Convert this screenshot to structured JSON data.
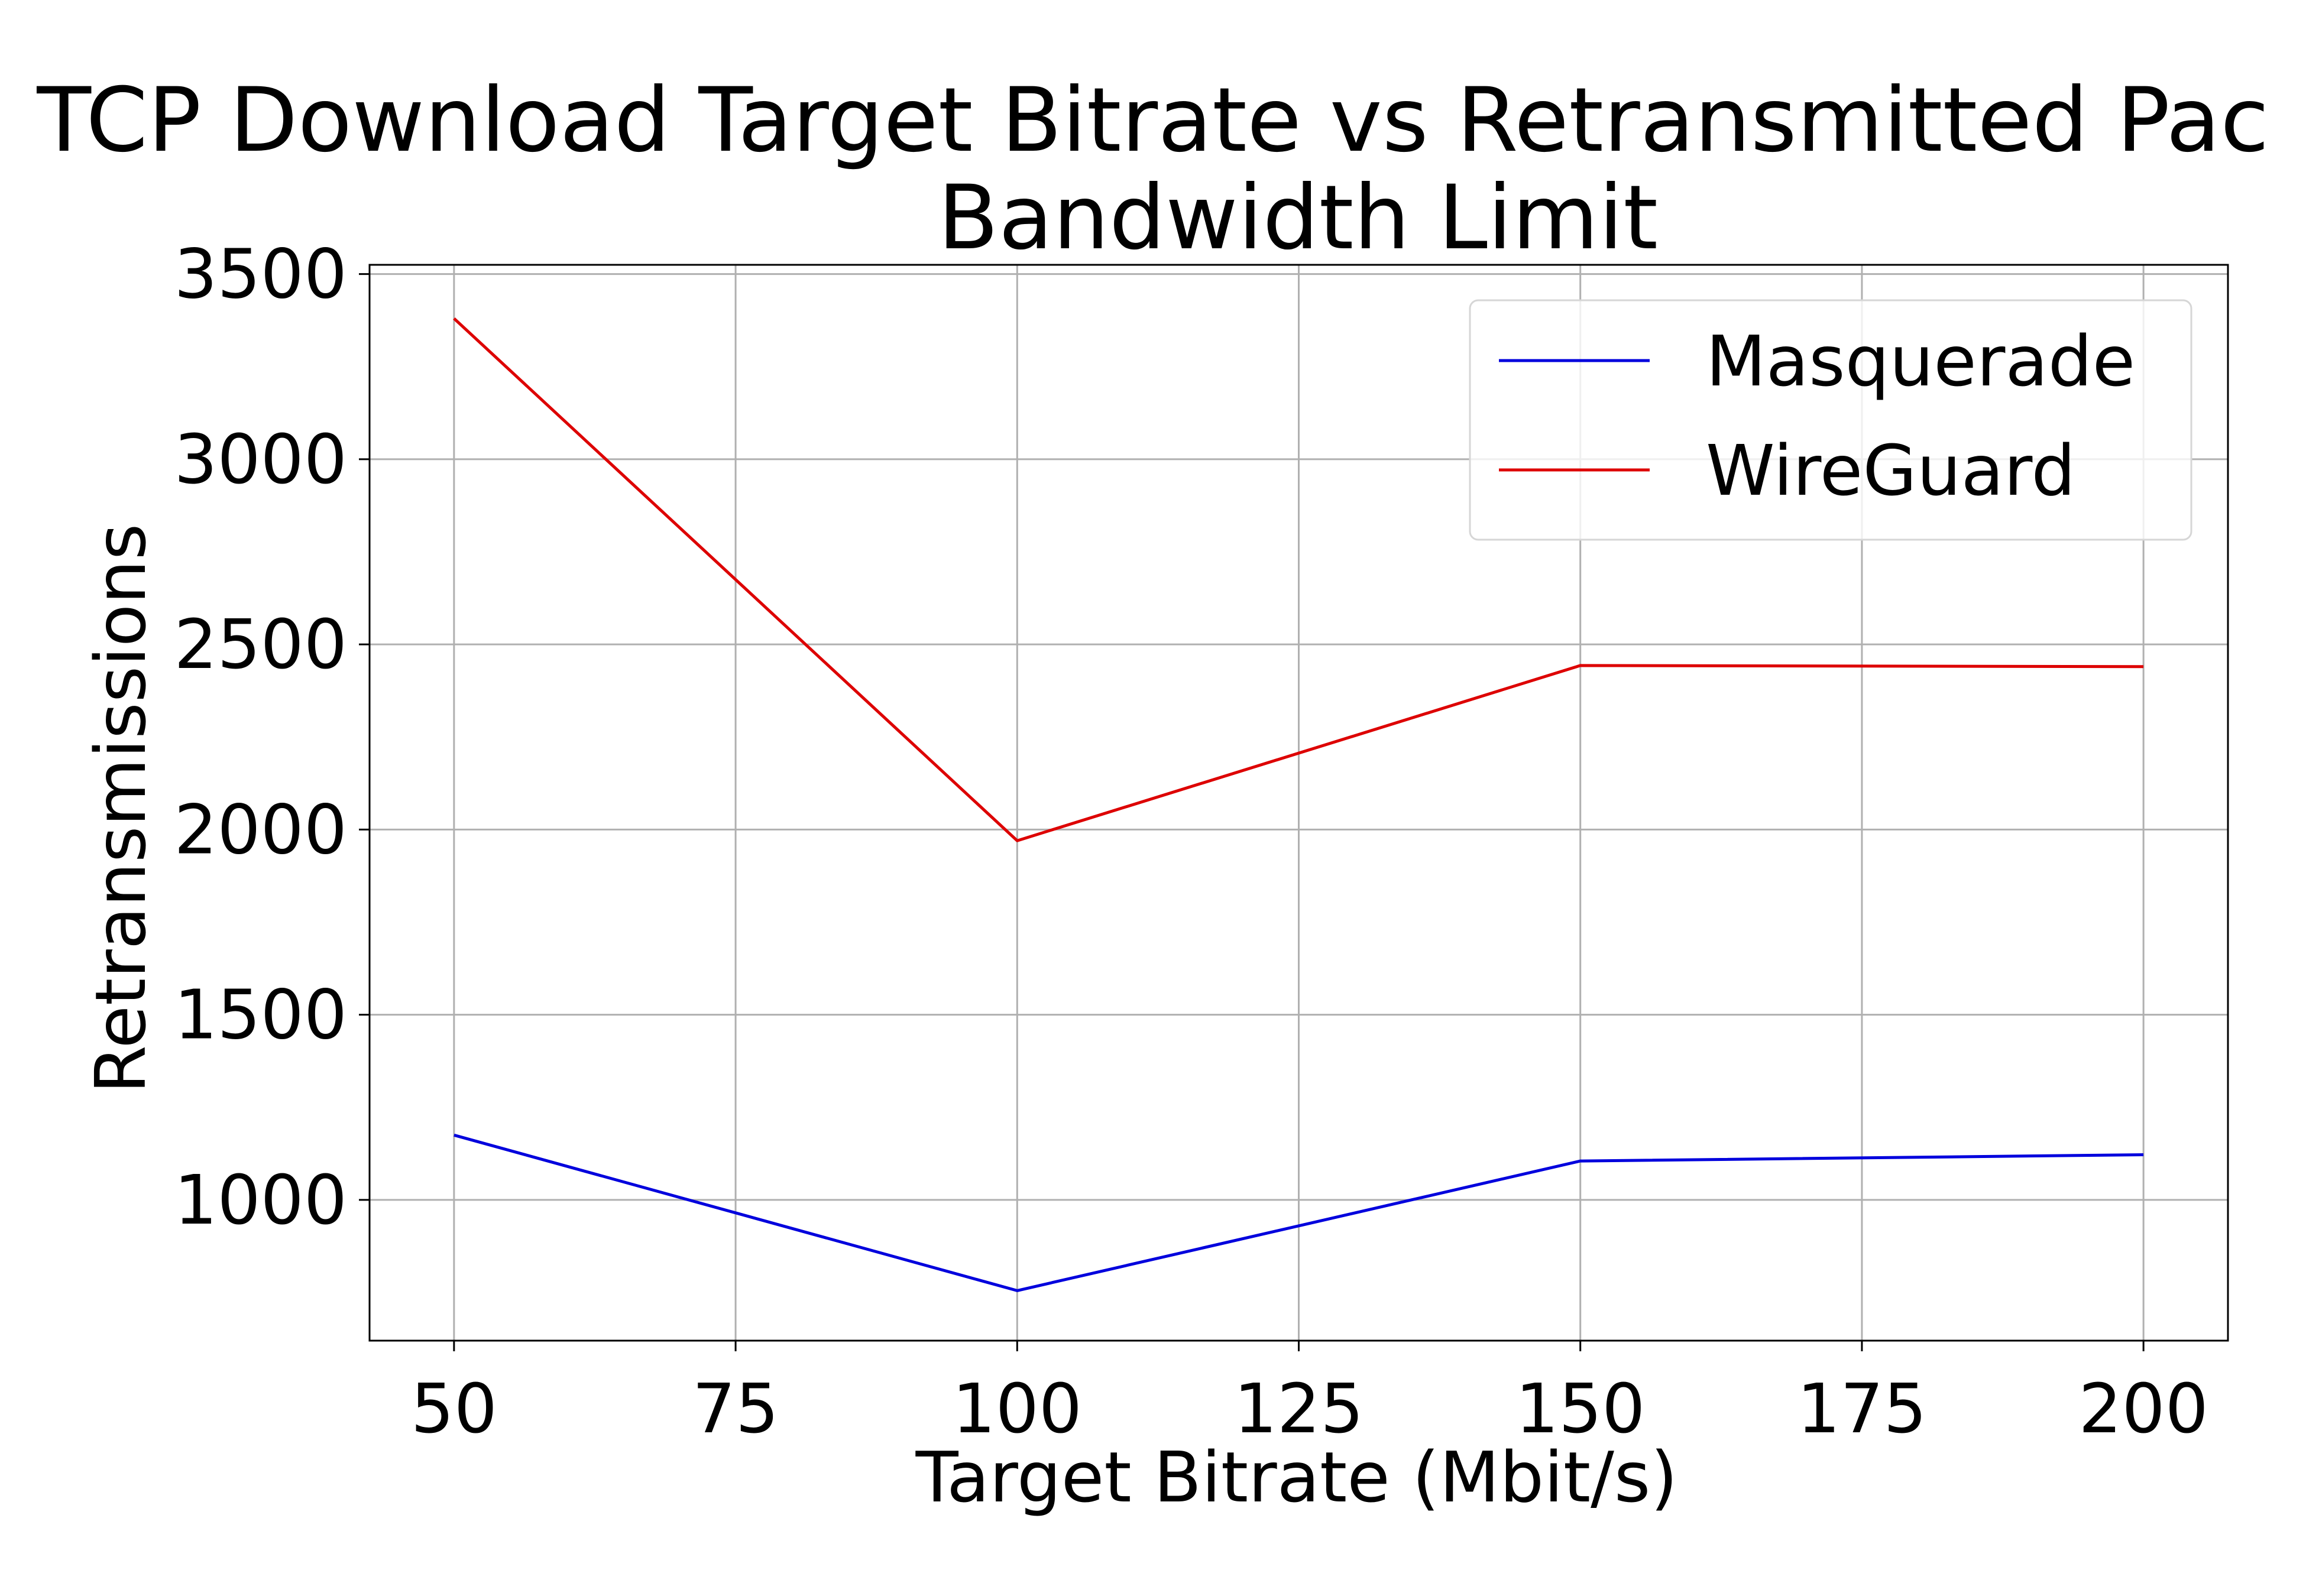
{
  "chart_data": {
    "type": "line",
    "title_line1": "TCP Download Target Bitrate vs Retransmitted Pac",
    "title_line2": "Bandwidth Limit",
    "xlabel": "Target Bitrate (Mbit/s)",
    "ylabel": "Retransmissions",
    "x": [
      50,
      100,
      150,
      200
    ],
    "xlim": [
      42.5,
      207.5
    ],
    "ylim": [
      620,
      3525
    ],
    "xticks": [
      50,
      75,
      100,
      125,
      150,
      175,
      200
    ],
    "yticks": [
      1000,
      1500,
      2000,
      2500,
      3000,
      3500
    ],
    "grid": true,
    "legend_position": "top-right",
    "series": [
      {
        "name": "Masquerade",
        "color": "#0000dd",
        "values": [
          1175,
          755,
          1105,
          1122
        ]
      },
      {
        "name": "WireGuard",
        "color": "#dd0000",
        "values": [
          3380,
          1970,
          2443,
          2440
        ]
      }
    ]
  }
}
